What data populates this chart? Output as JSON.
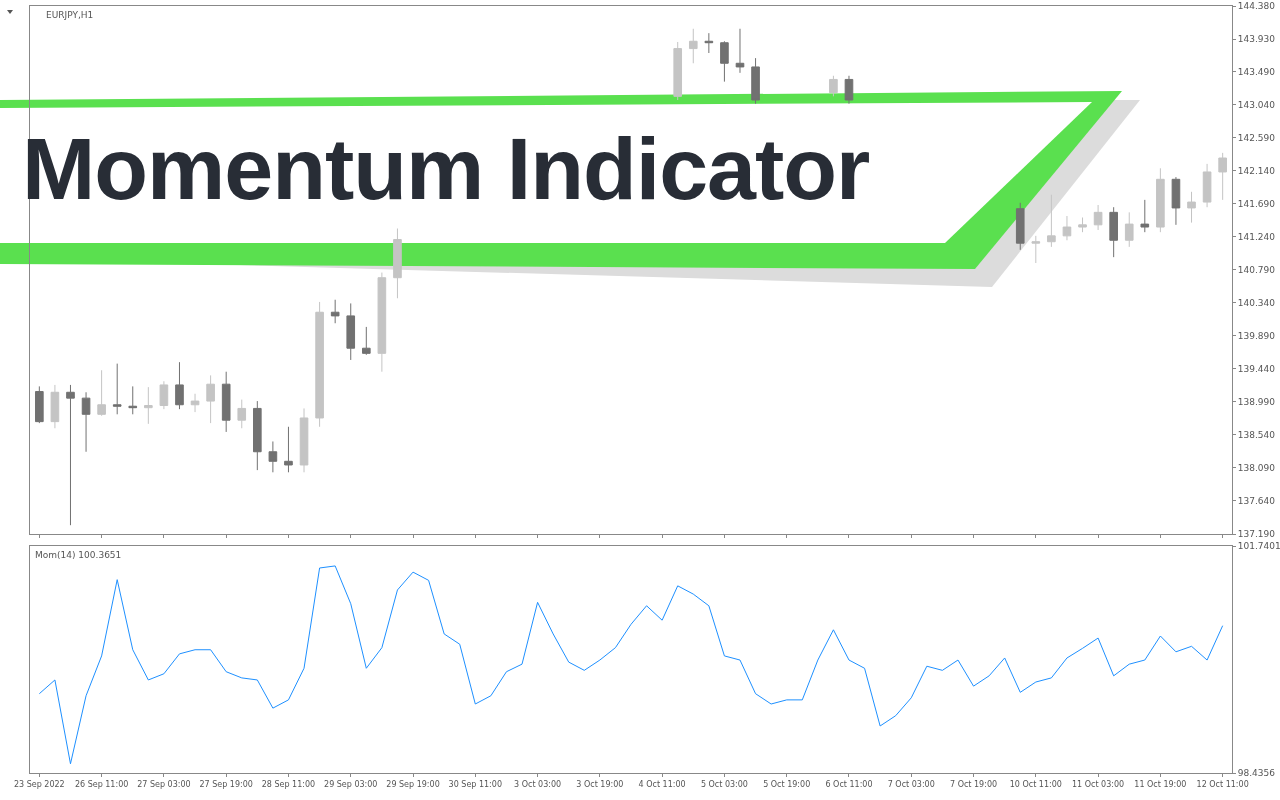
{
  "chart_data": [
    {
      "type": "candlestick",
      "title": "Momentum Indicator",
      "annotations": [
        "EURJPY,H1"
      ],
      "categories": [
        null,
        null,
        null,
        null,
        null,
        null,
        null,
        null,
        null,
        null,
        null,
        null,
        null,
        null,
        null,
        null,
        null,
        null,
        null,
        null,
        null,
        null,
        null,
        null,
        null,
        null,
        null,
        null,
        null,
        null,
        null,
        null,
        null,
        null,
        null,
        null,
        null,
        null,
        null,
        null,
        null,
        null,
        null,
        null,
        null,
        null,
        null,
        null,
        null,
        null,
        null,
        null,
        null,
        null,
        null,
        null,
        null,
        null,
        null,
        null,
        null,
        null,
        null,
        null,
        null,
        null,
        null,
        null,
        null,
        null,
        null,
        null,
        null,
        null,
        null,
        null,
        null
      ],
      "ohlc": [
        [
          139.13,
          139.2,
          138.7,
          138.72
        ],
        [
          138.72,
          139.22,
          138.63,
          139.12
        ],
        [
          139.12,
          139.22,
          137.31,
          139.04
        ],
        [
          139.04,
          139.12,
          138.31,
          138.82
        ],
        [
          138.82,
          139.42,
          138.8,
          138.95
        ],
        [
          138.95,
          139.51,
          138.82,
          138.93
        ],
        [
          138.93,
          139.2,
          138.82,
          138.91
        ],
        [
          138.91,
          139.19,
          138.69,
          138.94
        ],
        [
          138.94,
          139.27,
          138.89,
          139.22
        ],
        [
          139.22,
          139.53,
          138.89,
          138.95
        ],
        [
          138.95,
          139.1,
          138.85,
          139.0
        ],
        [
          139.0,
          139.35,
          138.7,
          139.23
        ],
        [
          139.23,
          139.4,
          138.58,
          138.74
        ],
        [
          138.74,
          139.02,
          138.63,
          138.9
        ],
        [
          138.9,
          139.0,
          138.06,
          138.31
        ],
        [
          138.31,
          138.45,
          138.03,
          138.18
        ],
        [
          138.18,
          138.65,
          138.03,
          138.13
        ],
        [
          138.13,
          138.9,
          138.03,
          138.77
        ],
        [
          138.77,
          140.35,
          138.65,
          140.21
        ],
        [
          140.21,
          140.38,
          140.06,
          140.16
        ],
        [
          140.16,
          140.33,
          139.56,
          139.72
        ],
        [
          139.72,
          140.01,
          139.63,
          139.65
        ],
        [
          139.65,
          140.75,
          139.4,
          140.68
        ],
        [
          140.68,
          141.35,
          140.4,
          141.2
        ],
        null,
        null,
        null,
        null,
        null,
        null,
        null,
        null,
        null,
        null,
        null,
        null,
        null,
        null,
        null,
        null,
        null,
        [
          143.15,
          143.89,
          143.1,
          143.8
        ],
        [
          143.8,
          144.07,
          143.6,
          143.9
        ],
        [
          143.9,
          144.01,
          143.74,
          143.88
        ],
        [
          143.88,
          143.9,
          143.35,
          143.6
        ],
        [
          143.6,
          144.07,
          143.47,
          143.55
        ],
        [
          143.55,
          143.67,
          143.05,
          143.1
        ],
        null,
        null,
        null,
        null,
        [
          143.2,
          143.43,
          143.15,
          143.38
        ],
        [
          143.38,
          143.43,
          143.05,
          143.1
        ],
        null,
        null,
        null,
        null,
        null,
        null,
        null,
        null,
        null,
        null,
        [
          141.62,
          141.7,
          141.06,
          141.15
        ],
        [
          141.15,
          141.25,
          140.88,
          141.17
        ],
        [
          141.17,
          141.81,
          141.1,
          141.25
        ],
        [
          141.25,
          141.52,
          141.19,
          141.37
        ],
        [
          141.37,
          141.5,
          141.3,
          141.4
        ],
        [
          141.4,
          141.67,
          141.33,
          141.57
        ],
        [
          141.57,
          141.64,
          140.96,
          141.19
        ],
        [
          141.19,
          141.57,
          141.1,
          141.41
        ],
        [
          141.41,
          141.74,
          141.3,
          141.37
        ],
        [
          141.37,
          142.17,
          141.3,
          142.02
        ],
        [
          142.02,
          142.05,
          141.4,
          141.63
        ],
        [
          141.63,
          141.85,
          141.43,
          141.71
        ],
        [
          141.71,
          142.23,
          141.64,
          142.12
        ],
        [
          142.12,
          142.38,
          141.74,
          142.31
        ]
      ],
      "colors": [
        "#717171",
        "#c4c4c4",
        "#717171",
        "#717171",
        "#c4c4c4",
        "#717171",
        "#717171",
        "#c4c4c4",
        "#c4c4c4",
        "#717171",
        "#c4c4c4",
        "#c4c4c4",
        "#717171",
        "#c4c4c4",
        "#717171",
        "#717171",
        "#717171",
        "#c4c4c4",
        "#c4c4c4",
        "#717171",
        "#717171",
        "#717171",
        "#c4c4c4",
        "#c4c4c4",
        null,
        null,
        null,
        null,
        null,
        null,
        null,
        null,
        null,
        null,
        null,
        null,
        null,
        null,
        null,
        null,
        null,
        "#c4c4c4",
        "#c4c4c4",
        "#717171",
        "#717171",
        "#717171",
        "#717171",
        null,
        null,
        null,
        null,
        "#c4c4c4",
        "#717171",
        null,
        null,
        null,
        null,
        null,
        null,
        null,
        null,
        null,
        null,
        "#717171",
        "#c4c4c4",
        "#c4c4c4",
        "#c4c4c4",
        "#c4c4c4",
        "#c4c4c4",
        "#717171",
        "#c4c4c4",
        "#717171",
        "#c4c4c4",
        "#717171",
        "#c4c4c4",
        "#c4c4c4",
        "#c4c4c4"
      ],
      "ylim": [
        137.19,
        144.38
      ],
      "yticks": [
        {
          "value": 137.19,
          "label": "137.190"
        },
        {
          "value": 137.64,
          "label": "137.640"
        },
        {
          "value": 138.09,
          "label": "138.090"
        },
        {
          "value": 138.54,
          "label": "138.540"
        },
        {
          "value": 138.99,
          "label": "138.990"
        },
        {
          "value": 139.44,
          "label": "139.440"
        },
        {
          "value": 139.89,
          "label": "139.890"
        },
        {
          "value": 140.34,
          "label": "140.340"
        },
        {
          "value": 140.79,
          "label": "140.790"
        },
        {
          "value": 141.24,
          "label": "141.240"
        },
        {
          "value": 141.69,
          "label": "141.690"
        },
        {
          "value": 142.14,
          "label": "142.140"
        },
        {
          "value": 142.59,
          "label": "142.590"
        },
        {
          "value": 143.04,
          "label": "143.040"
        },
        {
          "value": 143.49,
          "label": "143.490"
        },
        {
          "value": 143.93,
          "label": "143.930"
        },
        {
          "value": 144.38,
          "label": "144.380"
        }
      ],
      "tick_labels": "y"
    },
    {
      "type": "line",
      "annotations": [
        "Mom(14) 100.3651"
      ],
      "categories": [
        "23 Sep 2022",
        null,
        null,
        null,
        "26 Sep 11:00",
        null,
        null,
        null,
        "27 Sep 03:00",
        null,
        null,
        null,
        "27 Sep 19:00",
        null,
        null,
        null,
        "28 Sep 11:00",
        null,
        null,
        null,
        "29 Sep 03:00",
        null,
        null,
        null,
        "29 Sep 19:00",
        null,
        null,
        null,
        "30 Sep 11:00",
        null,
        null,
        null,
        "3 Oct 03:00",
        null,
        null,
        null,
        "3 Oct 19:00",
        null,
        null,
        null,
        "4 Oct 11:00",
        null,
        null,
        null,
        "5 Oct 03:00",
        null,
        null,
        null,
        "5 Oct 19:00",
        null,
        null,
        null,
        "6 Oct 11:00",
        null,
        null,
        null,
        "7 Oct 03:00",
        null,
        null,
        null,
        "7 Oct 19:00",
        null,
        null,
        null,
        "10 Oct 11:00",
        null,
        null,
        null,
        "11 Oct 03:00",
        null,
        null,
        null,
        "11 Oct 19:00",
        null,
        null,
        null,
        "12 Oct 11:00"
      ],
      "series": [
        {
          "color": "#1e90ff",
          "values": [
            99.59,
            99.79,
            98.57,
            99.56,
            100.14,
            101.25,
            100.23,
            99.79,
            99.88,
            100.17,
            100.23,
            100.23,
            99.91,
            99.82,
            99.79,
            99.38,
            99.5,
            99.96,
            101.42,
            101.45,
            100.9,
            99.96,
            100.26,
            101.1,
            101.36,
            101.24,
            100.46,
            100.31,
            99.44,
            99.56,
            99.91,
            100.02,
            100.92,
            100.46,
            100.05,
            99.93,
            100.08,
            100.26,
            100.6,
            100.87,
            100.66,
            101.16,
            101.04,
            100.87,
            100.14,
            100.08,
            99.59,
            99.44,
            99.5,
            99.5,
            100.08,
            100.52,
            100.08,
            99.96,
            99.12,
            99.27,
            99.53,
            99.99,
            99.93,
            100.08,
            99.7,
            99.85,
            100.11,
            99.61,
            99.76,
            99.82,
            100.11,
            100.25,
            100.4,
            99.85,
            100.02,
            100.08,
            100.43,
            100.2,
            100.28,
            100.08,
            100.58
          ]
        }
      ],
      "ylim": [
        98.4356,
        101.7401
      ],
      "yticks": [
        98.4356,
        101.7401
      ]
    }
  ]
}
